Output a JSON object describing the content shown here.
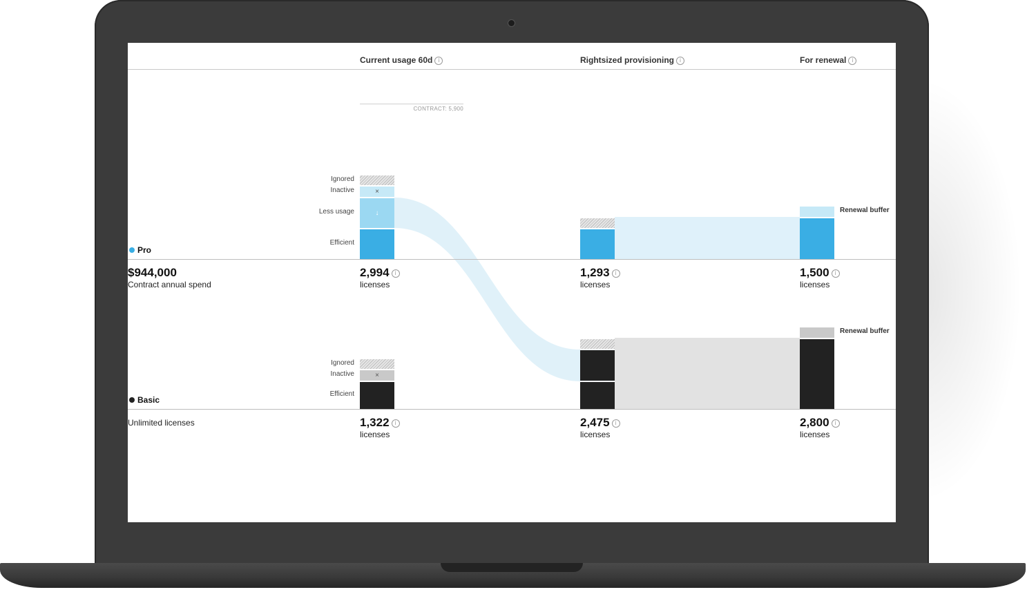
{
  "headers": {
    "current": "Current usage 60d",
    "rightsized": "Rightsized provisioning",
    "renewal": "For renewal"
  },
  "contract_label": "CONTRACT: 5,900",
  "pro": {
    "name": "Pro",
    "color": "#3aaee4",
    "spend": "$944,000",
    "spend_label": "Contract annual spend",
    "labels": {
      "ignored": "Ignored",
      "inactive": "Inactive",
      "less_usage": "Less usage",
      "efficient": "Efficient",
      "renewal_buffer": "Renewal buffer"
    },
    "current": {
      "value": "2,994",
      "unit": "licenses"
    },
    "rightsized": {
      "value": "1,293",
      "unit": "licenses"
    },
    "renewal": {
      "value": "1,500",
      "unit": "licenses"
    }
  },
  "basic": {
    "name": "Basic",
    "color": "#222222",
    "spend_label": "Unlimited licenses",
    "labels": {
      "ignored": "Ignored",
      "inactive": "Inactive",
      "efficient": "Efficient",
      "renewal_buffer": "Renewal buffer"
    },
    "current": {
      "value": "1,322",
      "unit": "licenses"
    },
    "rightsized": {
      "value": "2,475",
      "unit": "licenses"
    },
    "renewal": {
      "value": "2,800",
      "unit": "licenses"
    }
  },
  "icons": {
    "info": "i",
    "inactive": "×",
    "less_usage": "↓"
  },
  "colors": {
    "pro_bar": "#3aaee4",
    "pro_light": "#c6e9f7",
    "pro_flow": "#dff1fa",
    "basic_bar": "#222222",
    "basic_light": "#c9c9c9",
    "basic_flow": "#e4e4e4"
  }
}
